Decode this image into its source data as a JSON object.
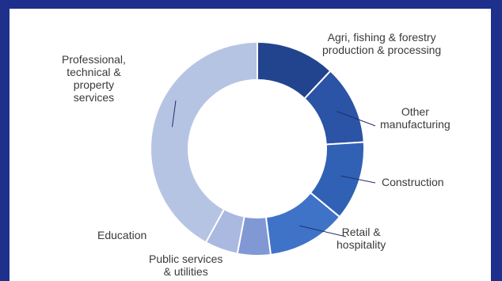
{
  "chart_data": {
    "type": "pie",
    "donut": true,
    "categories": [
      "Agri, fishing & forestry production & processing",
      "Other manufacturing",
      "Construction",
      "Retail & hospitality",
      "Public services & utilities",
      "Education",
      "Professional, technical & property services"
    ],
    "values": [
      12,
      12,
      12,
      12,
      5,
      5,
      42
    ],
    "colors": [
      "#22448f",
      "#2b53a6",
      "#3161b4",
      "#3f73c7",
      "#8098d3",
      "#a9b9e0",
      "#b6c4e4"
    ],
    "labels": {
      "agri": "Agri, fishing & forestry\nproduction & processing",
      "manufacturing": "Other\nmanufacturing",
      "construction": "Construction",
      "retail": "Retail &\nhospitality",
      "public": "Public services\n& utilities",
      "education": "Education",
      "professional": "Professional,\ntechnical &\nproperty\nservices"
    },
    "title": "",
    "legend": "none"
  }
}
